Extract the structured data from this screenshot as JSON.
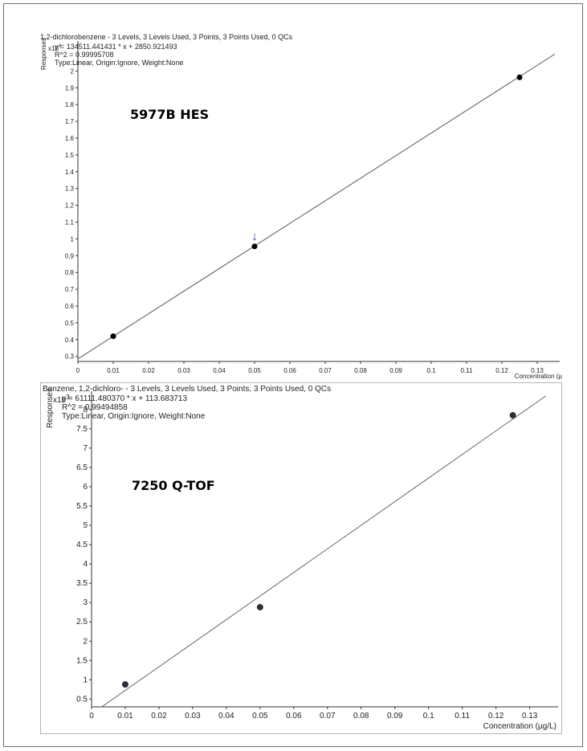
{
  "chart_data": [
    {
      "type": "scatter",
      "title": "1,2-dichlorobenzene - 3 Levels, 3 Levels Used, 3 Points, 3 Points Used, 0 QCs",
      "equation": "y = 134511.441431 * x  + 2850.921493",
      "r2": "R^2 = 0.99995708",
      "fit_type": "Type:Linear, Origin:Ignore, Weight:None",
      "instrument_label": "5977B HES",
      "ylabel": "Responses",
      "y_multiplier": "x10 4",
      "xlabel": "Concentration (µ",
      "xlim": [
        0,
        0.135
      ],
      "ylim": [
        0.27,
        2.15
      ],
      "x_ticks": [
        "0",
        "0.01",
        "0.02",
        "0.03",
        "0.04",
        "0.05",
        "0.06",
        "0.07",
        "0.08",
        "0.09",
        "0.1",
        "0.11",
        "0.12",
        "0.13"
      ],
      "y_ticks": [
        "0.3",
        "0.4",
        "0.5",
        "0.6",
        "0.7",
        "0.8",
        "0.9",
        "1",
        "1.1",
        "1.2",
        "1.3",
        "1.4",
        "1.5",
        "1.6",
        "1.7",
        "1.8",
        "1.9",
        "2"
      ],
      "fit_line": {
        "slope": 134511.441431,
        "intercept": 2850.921493,
        "scale": 10000
      },
      "series": [
        {
          "x": [
            0.01,
            0.05,
            0.125
          ],
          "y": [
            0.42,
            0.955,
            1.962
          ]
        }
      ],
      "annotation": {
        "symbol": "↓",
        "x": 0.05
      },
      "colors": {
        "points": "#000000",
        "line": "#555555",
        "arrow": "#1f3fa0"
      }
    },
    {
      "type": "scatter",
      "title": "Benzene, 1,2-dichloro- - 3 Levels, 3 Levels Used, 3 Points, 3 Points Used, 0 QCs",
      "equation": "y = 61111.480370 * x  + 113.683713",
      "r2": "R^2 = 0.99494858",
      "fit_type": "Type:Linear, Origin:Ignore, Weight:None",
      "instrument_label": "7250 Q-TOF",
      "ylabel": "Responses",
      "y_multiplier": "x10 3",
      "xlabel": "Concentration (µg/L)",
      "xlim": [
        0,
        0.137
      ],
      "ylim": [
        0.3,
        8.35
      ],
      "x_ticks": [
        "0",
        "0.01",
        "0.02",
        "0.03",
        "0.04",
        "0.05",
        "0.06",
        "0.07",
        "0.08",
        "0.09",
        "0.1",
        "0.11",
        "0.12",
        "0.13"
      ],
      "y_ticks": [
        "0.5",
        "1",
        "1.5",
        "2",
        "2.5",
        "3",
        "3.5",
        "4",
        "4.5",
        "5",
        "5.5",
        "6",
        "6.5",
        "7",
        "7.5",
        "8"
      ],
      "fit_line": {
        "slope": 61111.48037,
        "intercept": 113.683713,
        "scale": 1000
      },
      "series": [
        {
          "x": [
            0.01,
            0.05,
            0.125
          ],
          "y": [
            0.88,
            2.88,
            7.85
          ]
        }
      ],
      "colors": {
        "points": "#2b2f3a",
        "line": "#666666"
      }
    }
  ]
}
